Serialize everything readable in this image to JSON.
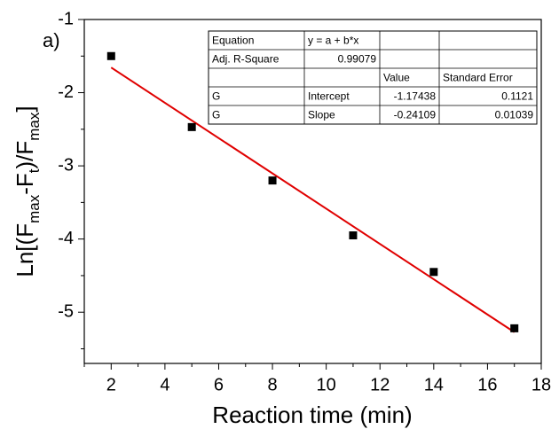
{
  "chart_data": {
    "type": "scatter",
    "annotation": "a)",
    "xlabel": "Reaction time (min)",
    "ylabel_parts": [
      "Ln[(F",
      "max",
      "-F",
      "t",
      ")/F",
      "max",
      "]"
    ],
    "xlim": [
      1,
      18
    ],
    "ylim": [
      -5.7,
      -1
    ],
    "xticks": [
      2,
      4,
      6,
      8,
      10,
      12,
      14,
      16,
      18
    ],
    "yticks": [
      -1,
      -2,
      -3,
      -4,
      -5
    ],
    "xminorticks": [
      1,
      3,
      5,
      7,
      9,
      11,
      13,
      15,
      17
    ],
    "yminorticks": [
      -1.5,
      -2.5,
      -3.5,
      -4.5,
      -5.5
    ],
    "series": [
      {
        "color": "#000000",
        "x": [
          2,
          5,
          8,
          11,
          14,
          17
        ],
        "values": [
          -1.5,
          -2.47,
          -3.2,
          -3.95,
          -4.45,
          -5.22
        ]
      }
    ],
    "fit": {
      "color": "#e00000",
      "x": [
        2,
        17
      ],
      "values": [
        -1.65656,
        -5.27291
      ]
    },
    "table": {
      "rows": [
        [
          "Equation",
          "y = a + b*x",
          null,
          null
        ],
        [
          "Adj. R-Square",
          "0.99079",
          null,
          null
        ],
        [
          null,
          null,
          "Value",
          "Standard Error"
        ],
        [
          "G",
          "Intercept",
          "-1.17438",
          "0.1121"
        ],
        [
          "G",
          "Slope",
          "-0.24109",
          "0.01039"
        ]
      ]
    }
  }
}
